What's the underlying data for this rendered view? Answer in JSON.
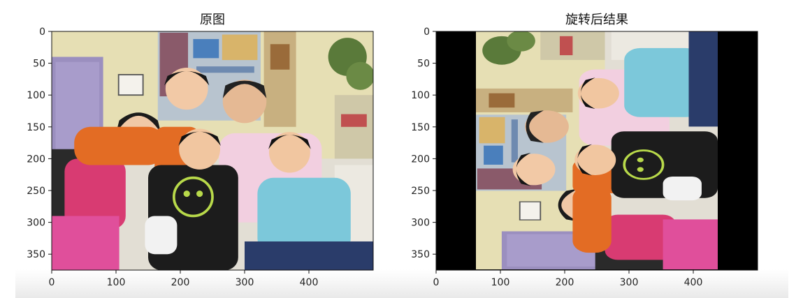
{
  "chart_data": [
    {
      "type": "image",
      "title": "原图",
      "image_shape": [
        375,
        500
      ],
      "xlim": [
        0,
        500
      ],
      "ylim": [
        375,
        0
      ],
      "xticks": [
        0,
        100,
        200,
        300,
        400
      ],
      "yticks": [
        0,
        50,
        100,
        150,
        200,
        250,
        300,
        350
      ],
      "content": "family photo of five people on a sofa",
      "colors": {
        "wall": "#e8e0b0",
        "door": "#9c8fc1",
        "sofa": "#e4e0d6",
        "orange_shirt": "#e06a22",
        "pink_shirt": "#d13b73",
        "black_shirt": "#1c1c1c",
        "cyan_shirt": "#7cc7d8",
        "pink_pants": "#e04e9a"
      }
    },
    {
      "type": "image",
      "title": "旋转后结果",
      "image_shape": [
        375,
        500
      ],
      "xlim": [
        0,
        500
      ],
      "ylim": [
        375,
        0
      ],
      "xticks": [
        0,
        100,
        200,
        300,
        400
      ],
      "yticks": [
        0,
        50,
        100,
        150,
        200,
        250,
        300,
        350
      ],
      "rotation_degrees": 90,
      "content_x_range": [
        62,
        438
      ],
      "padding_color": "#000000"
    }
  ]
}
